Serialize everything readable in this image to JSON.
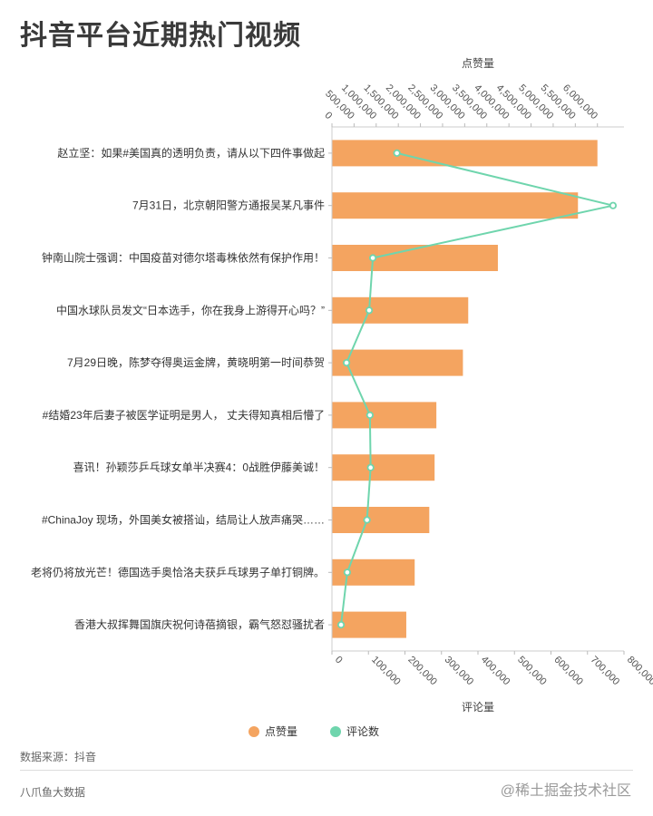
{
  "chart_data": {
    "type": "bar",
    "title": "抖音平台近期热门视频",
    "categories": [
      "赵立坚：如果#美国真的透明负责，请从以下四件事做起",
      "7月31日，北京朝阳警方通报吴某凡事件",
      "钟南山院士强调：中国疫苗对德尔塔毒株依然有保护作用！",
      "中国水球队员发文“日本选手，你在我身上游得开心吗？”",
      "7月29日晚，陈梦夺得奥运金牌，黄晓明第一时间恭贺",
      "#结婚23年后妻子被医学证明是男人， 丈夫得知真相后懵了",
      "喜讯！孙颖莎乒乓球女单半决赛4：0战胜伊藤美诚！",
      "#ChinaJoy 现场，外国美女被搭讪，结局让人放声痛哭……",
      "老将仍将放光芒！德国选手奥恰洛夫获乒乓球男子单打铜牌。",
      "香港大叔挥舞国旗庆祝何诗蓓摘银，霸气怒怼骚扰者"
    ],
    "series": [
      {
        "name": "点赞量",
        "type": "bar",
        "axis": "top",
        "color": "#f4a460",
        "values": [
          6000000,
          5560000,
          3750000,
          3080000,
          2960000,
          2360000,
          2320000,
          2200000,
          1870000,
          1680000
        ]
      },
      {
        "name": "评论数",
        "type": "line",
        "axis": "bottom",
        "color": "#6fd5ad",
        "values": [
          178000,
          770000,
          112000,
          102000,
          40000,
          104000,
          106000,
          96000,
          42000,
          25000
        ]
      }
    ],
    "top_axis": {
      "label": "点赞量",
      "range": [
        0,
        6600000
      ],
      "ticks": [
        0,
        500000,
        1000000,
        1500000,
        2000000,
        2500000,
        3000000,
        3500000,
        4000000,
        4500000,
        5000000,
        5500000,
        6000000
      ],
      "tick_labels": [
        "0",
        "500,000",
        "1,000,000",
        "1,500,000",
        "2,000,000",
        "2,500,000",
        "3,000,000",
        "3,500,000",
        "4,000,000",
        "4,500,000",
        "5,000,000",
        "5,500,000",
        "6,000,000"
      ]
    },
    "bottom_axis": {
      "label": "评论量",
      "range": [
        0,
        800000
      ],
      "ticks": [
        0,
        100000,
        200000,
        300000,
        400000,
        500000,
        600000,
        700000,
        800000
      ],
      "tick_labels": [
        "0",
        "100,000",
        "200,000",
        "300,000",
        "400,000",
        "500,000",
        "600,000",
        "700,000",
        "800,000"
      ]
    },
    "legend": [
      {
        "label": "点赞量",
        "color": "#f4a460"
      },
      {
        "label": "评论数",
        "color": "#6fd5ad"
      }
    ],
    "legend_position": "bottom-center",
    "grid": false
  },
  "footer": {
    "source": "数据来源：抖音",
    "brand": "八爪鱼大数据",
    "watermark": "@稀土掘金技术社区"
  }
}
